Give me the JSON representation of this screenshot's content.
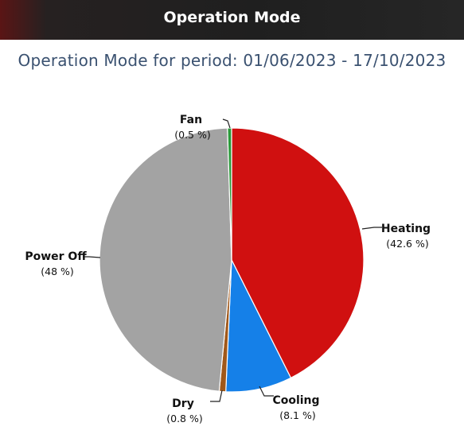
{
  "header": {
    "title": "Operation Mode"
  },
  "chart_data": {
    "type": "pie",
    "title": "Operation Mode for period: 01/06/2023 - 17/10/2023",
    "slices": [
      {
        "name": "Heating",
        "value": 42.6,
        "label": "(42.6 %)",
        "color": "#d01010"
      },
      {
        "name": "Cooling",
        "value": 8.1,
        "label": "(8.1 %)",
        "color": "#1580e8"
      },
      {
        "name": "Dry",
        "value": 0.8,
        "label": "(0.8 %)",
        "color": "#a0581a"
      },
      {
        "name": "Power Off",
        "value": 48,
        "label": "(48 %)",
        "color": "#a3a3a3"
      },
      {
        "name": "Fan",
        "value": 0.5,
        "label": "(0.5 %)",
        "color": "#2a9a3a"
      }
    ]
  }
}
